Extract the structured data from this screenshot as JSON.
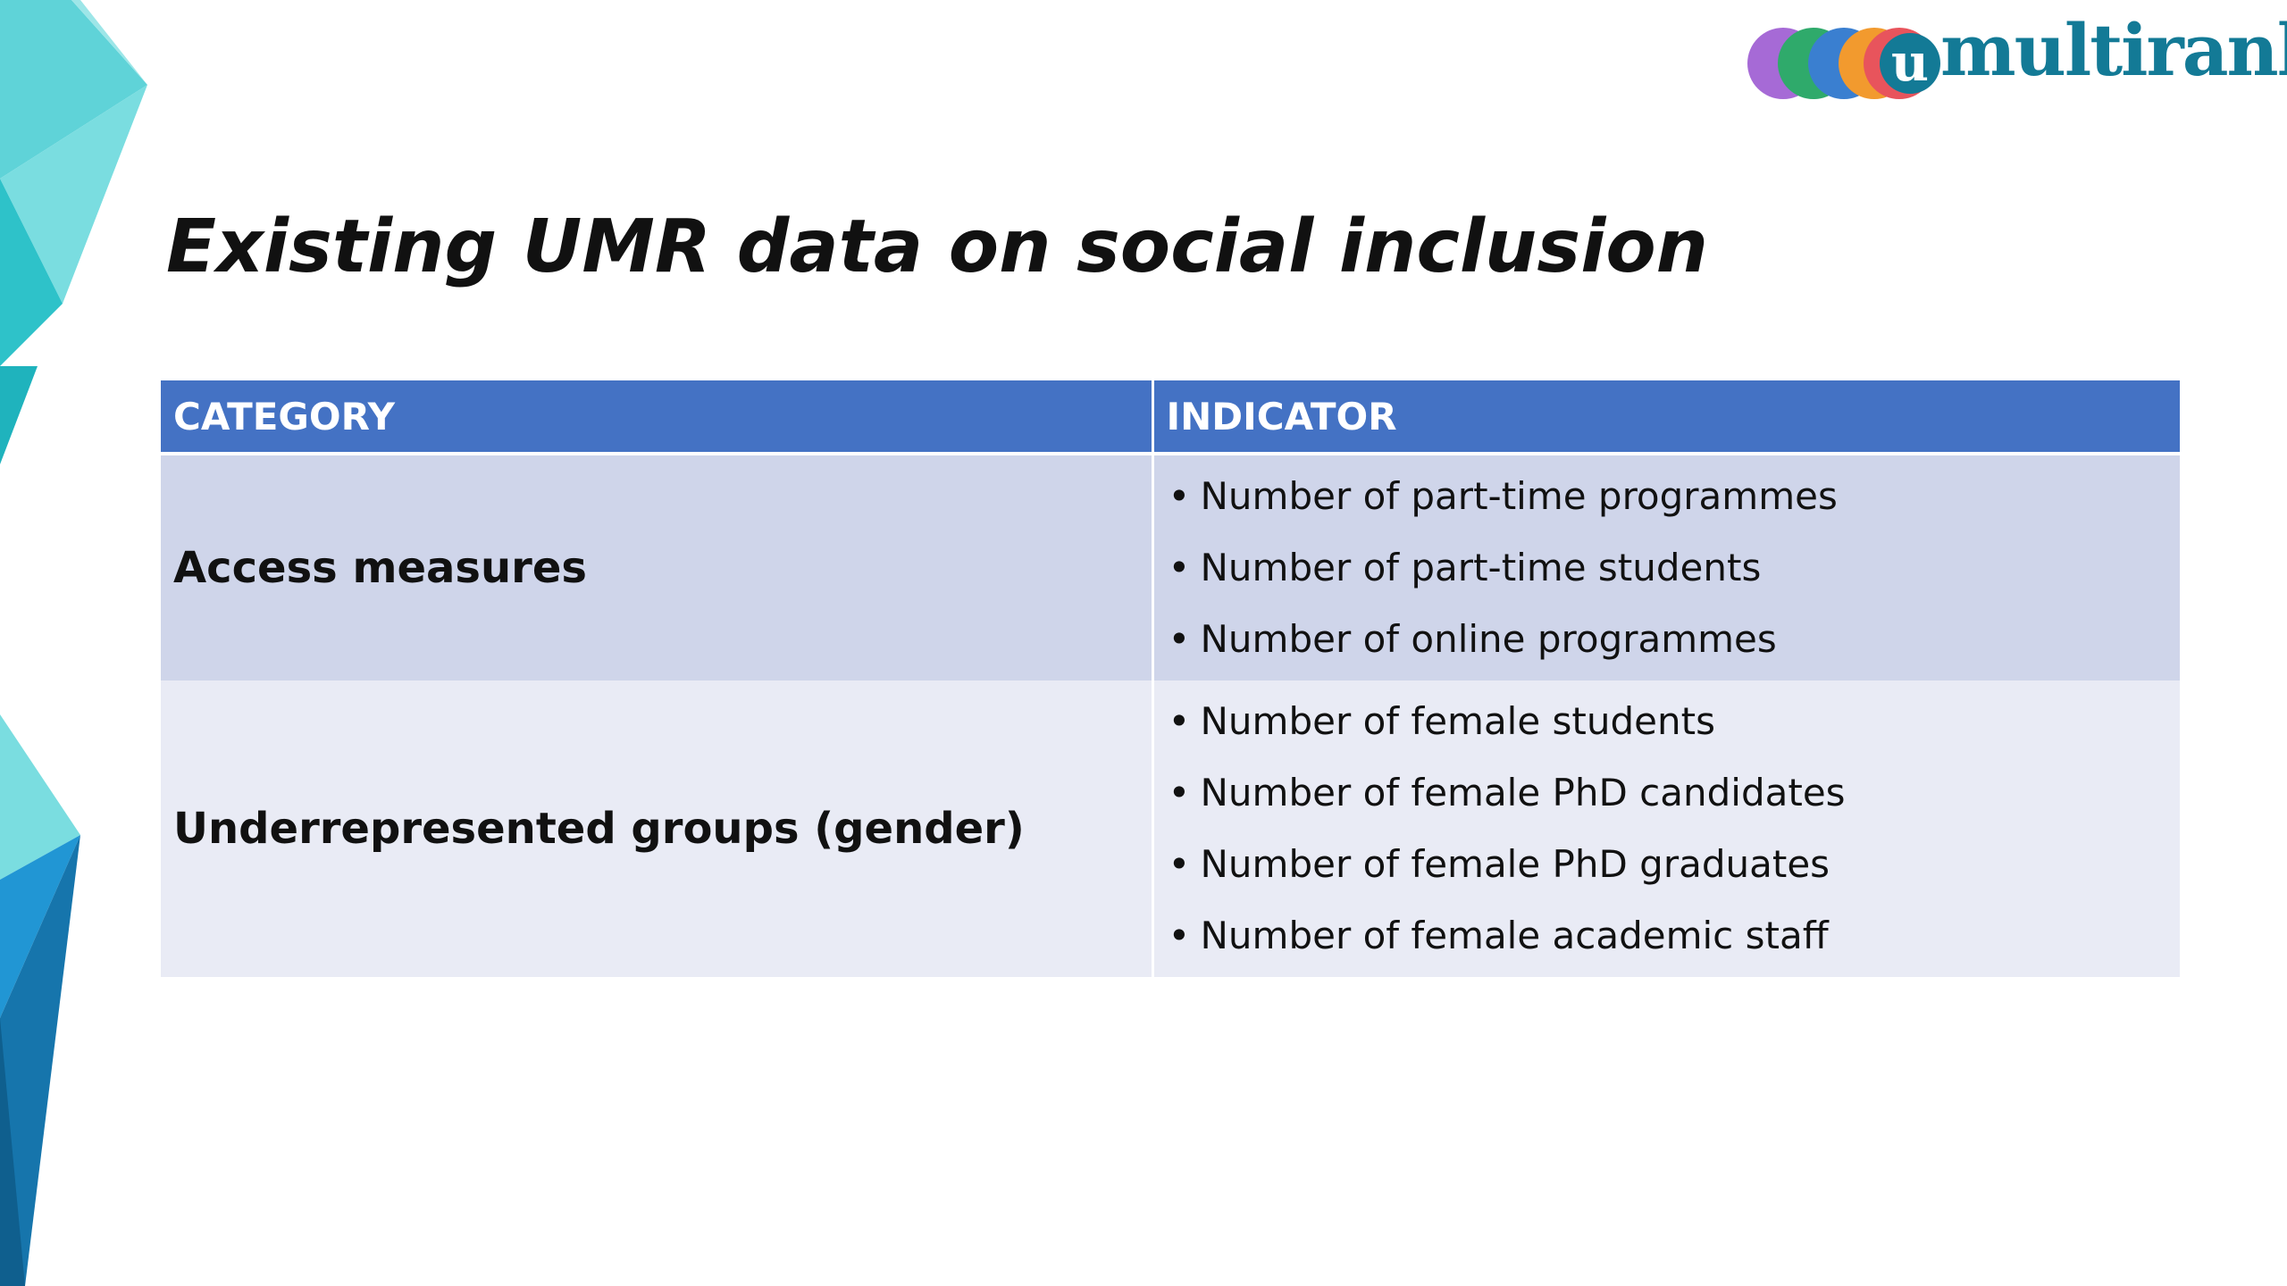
{
  "logo": {
    "text": "multirank",
    "letter": "u",
    "colors": [
      "#a66ad6",
      "#2faa6b",
      "#3a7fd0",
      "#f29a2e",
      "#e8545c",
      "#137a96"
    ]
  },
  "title": "Existing UMR data on social inclusion",
  "table": {
    "headers": [
      "CATEGORY",
      "INDICATOR"
    ],
    "header_color": "#4472c4",
    "rows": [
      {
        "category": "Access measures",
        "indicators": [
          "Number of part-time programmes",
          "Number of part-time students",
          "Number of online programmes"
        ]
      },
      {
        "category": "Underrepresented groups (gender)",
        "indicators": [
          "Number of female students",
          "Number of female PhD candidates",
          "Number of female PhD graduates",
          "Number of female academic staff"
        ]
      }
    ]
  }
}
